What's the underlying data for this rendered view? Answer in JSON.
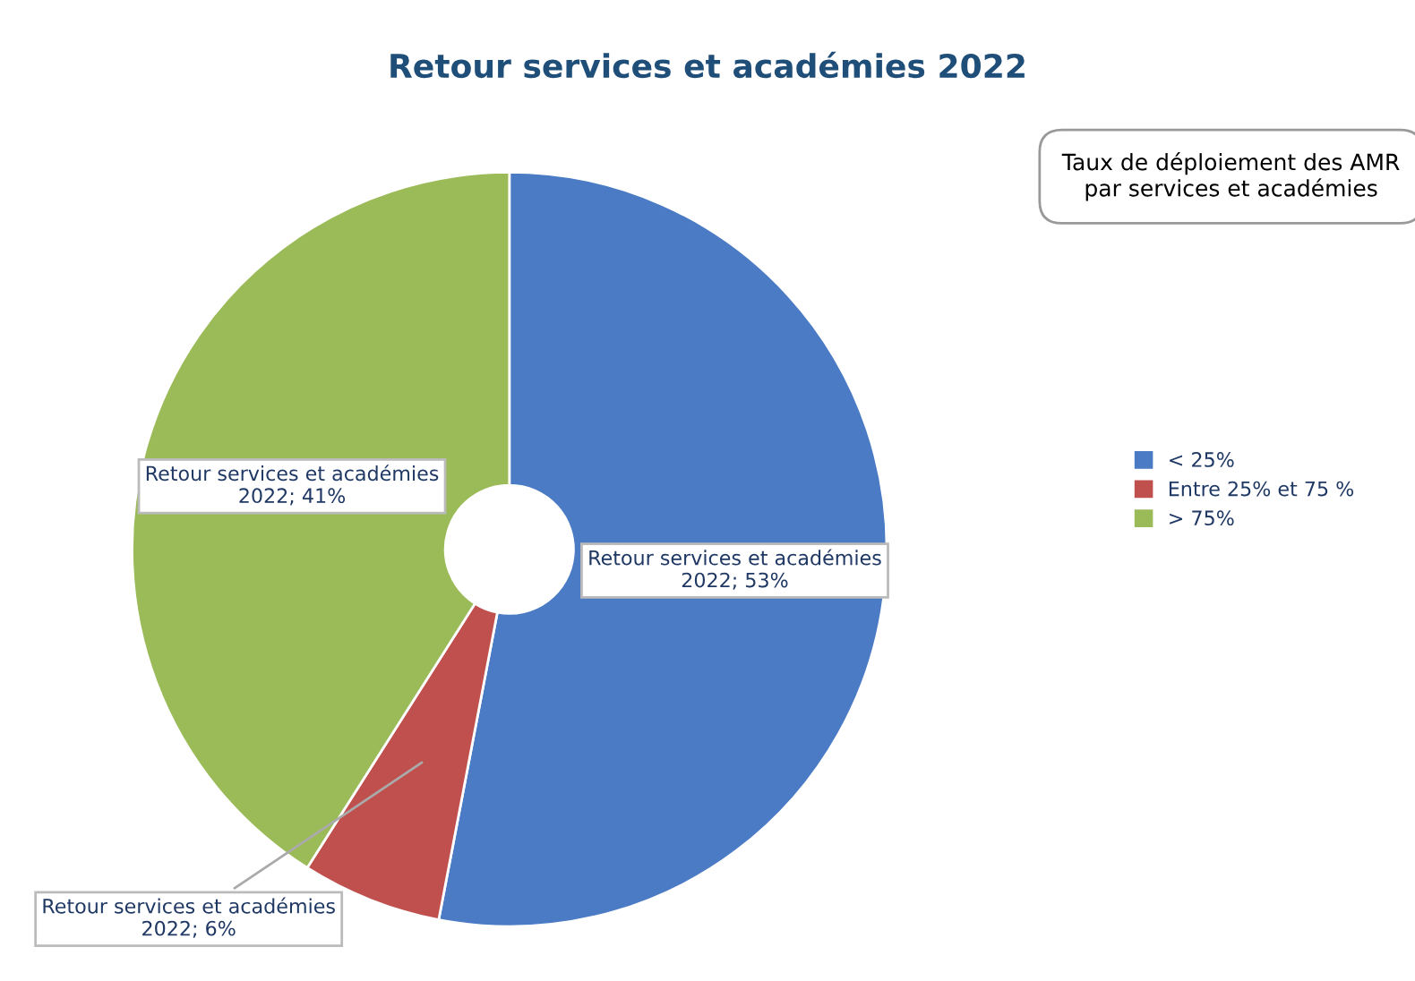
{
  "chart_data": {
    "type": "donut",
    "title": "Retour services et académies 2022",
    "categories": [
      "< 25%",
      "Entre 25% et 75 %",
      "> 75%"
    ],
    "values": [
      53,
      6,
      41
    ],
    "colors": [
      "#4a7bc4",
      "#c0504d",
      "#9bbb59"
    ],
    "value_labels": [
      "Retour services et académies 2022; 53%",
      "Retour services et académies 2022; 6%",
      "Retour services et académies 2022; 41%"
    ],
    "annotations": [
      "Taux de déploiement des AMR par services et académies"
    ],
    "legend": "right"
  }
}
